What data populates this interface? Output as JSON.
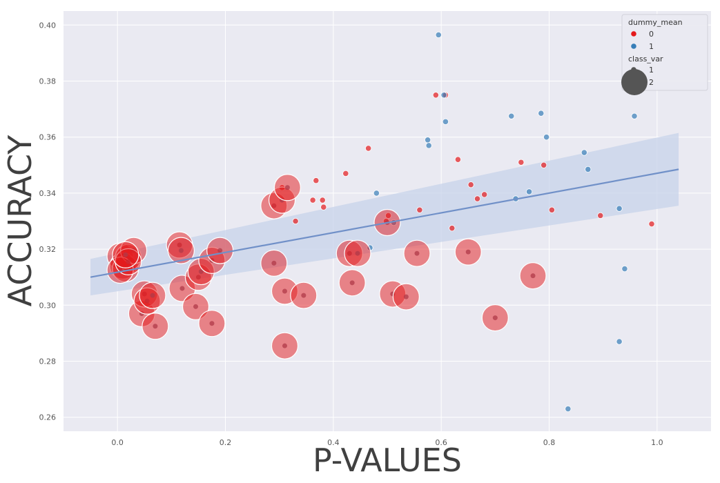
{
  "chart_data": {
    "type": "scatter",
    "title": "",
    "xlabel": "P-VALUES",
    "ylabel": "ACCURACY",
    "xlim": [
      -0.1,
      1.1
    ],
    "ylim": [
      0.255,
      0.405
    ],
    "xticks": [
      0.0,
      0.2,
      0.4,
      0.6,
      0.8,
      1.0
    ],
    "xtick_labels": [
      "0.0",
      "0.2",
      "0.4",
      "0.6",
      "0.8",
      "1.0"
    ],
    "yticks": [
      0.26,
      0.28,
      0.3,
      0.32,
      0.34,
      0.36,
      0.38,
      0.4
    ],
    "ytick_labels": [
      "0.26",
      "0.28",
      "0.30",
      "0.32",
      "0.34",
      "0.36",
      "0.38",
      "0.40"
    ],
    "grid": true,
    "background": "#eaeaf2",
    "colors": {
      "0": "#e41a1c",
      "1": "#377eb8",
      "regression": "#7090c8",
      "band": "#c7d3ea",
      "size_marker": "#555555"
    },
    "legend": {
      "position": "top-right",
      "hue_title": "dummy_mean",
      "hue_entries": [
        "0",
        "1"
      ],
      "size_title": "class_var",
      "size_entries": [
        "1",
        "2"
      ]
    },
    "regression": {
      "x": [
        -0.05,
        1.04
      ],
      "y": [
        0.31,
        0.3485
      ],
      "band_lower": [
        0.3035,
        0.3355
      ],
      "band_upper": [
        0.3165,
        0.3615
      ]
    },
    "series": [
      {
        "name": "0",
        "class_var": 1,
        "x": [
          0.498,
          0.502,
          0.608,
          0.59,
          0.631,
          0.655,
          0.68,
          0.667,
          0.748,
          0.79,
          0.805,
          0.895,
          0.99,
          0.423,
          0.465,
          0.368,
          0.38,
          0.382,
          0.362,
          0.33,
          0.305,
          0.56,
          0.62
        ],
        "y": [
          0.33,
          0.332,
          0.375,
          0.375,
          0.352,
          0.343,
          0.3395,
          0.338,
          0.351,
          0.35,
          0.334,
          0.332,
          0.329,
          0.347,
          0.356,
          0.3445,
          0.3375,
          0.335,
          0.3375,
          0.33,
          0.342,
          0.334,
          0.3275
        ]
      },
      {
        "name": "1",
        "class_var": 1,
        "x": [
          0.595,
          0.605,
          0.608,
          0.575,
          0.577,
          0.48,
          0.468,
          0.512,
          0.73,
          0.785,
          0.795,
          0.738,
          0.763,
          0.865,
          0.872,
          0.93,
          0.958,
          0.94,
          0.93,
          0.835
        ],
        "y": [
          0.3965,
          0.375,
          0.3655,
          0.359,
          0.357,
          0.34,
          0.3205,
          0.3295,
          0.3675,
          0.3685,
          0.36,
          0.338,
          0.3405,
          0.3545,
          0.3485,
          0.3345,
          0.3675,
          0.313,
          0.287,
          0.263
        ]
      },
      {
        "name": "0",
        "class_var": 2,
        "x": [
          0.005,
          0.01,
          0.015,
          0.02,
          0.03,
          0.005,
          0.02,
          0.015,
          0.045,
          0.05,
          0.055,
          0.065,
          0.07,
          0.115,
          0.118,
          0.12,
          0.145,
          0.15,
          0.155,
          0.175,
          0.175,
          0.19,
          0.29,
          0.29,
          0.305,
          0.31,
          0.31,
          0.315,
          0.345,
          0.43,
          0.435,
          0.445,
          0.5,
          0.51,
          0.535,
          0.555,
          0.65,
          0.7,
          0.77
        ],
        "y": [
          0.3175,
          0.314,
          0.313,
          0.317,
          0.3195,
          0.3125,
          0.3155,
          0.318,
          0.297,
          0.304,
          0.3015,
          0.3035,
          0.2925,
          0.3215,
          0.3195,
          0.306,
          0.2995,
          0.31,
          0.312,
          0.2935,
          0.316,
          0.3195,
          0.3355,
          0.315,
          0.3375,
          0.305,
          0.2855,
          0.342,
          0.3035,
          0.3185,
          0.308,
          0.3185,
          0.3295,
          0.304,
          0.303,
          0.3185,
          0.319,
          0.2955,
          0.3105
        ]
      }
    ]
  }
}
